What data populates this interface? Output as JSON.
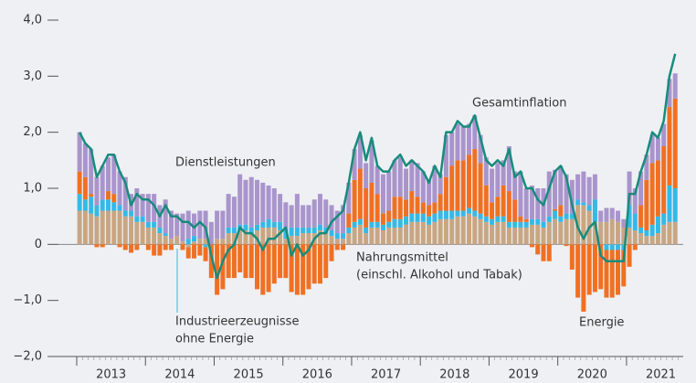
{
  "chart_data": {
    "type": "bar",
    "stacked": true,
    "categories": [
      null,
      null,
      null,
      null,
      null,
      null,
      null,
      null,
      null,
      null,
      null,
      null,
      null,
      null,
      null,
      null,
      null,
      null,
      null,
      null,
      null,
      null,
      null,
      null,
      null,
      null,
      null,
      null,
      null,
      null,
      null,
      null,
      null,
      null,
      null,
      null,
      null,
      null,
      null,
      null,
      null,
      null,
      null,
      null,
      null,
      null,
      null,
      null,
      null,
      null,
      null,
      null,
      null,
      null,
      null,
      null,
      null,
      null,
      null,
      null,
      null,
      null,
      null,
      null,
      null,
      null,
      null,
      null,
      null,
      null,
      null,
      null,
      null,
      null,
      null,
      null,
      null,
      null,
      null,
      null,
      null,
      null,
      null,
      null,
      null,
      null,
      null,
      null,
      null,
      null,
      null,
      null,
      null,
      null,
      null,
      null,
      null,
      null,
      null,
      null,
      null,
      null,
      null,
      null,
      null
    ],
    "year_labels": [
      "2013",
      "2014",
      "2015",
      "2016",
      "2017",
      "2018",
      "2019",
      "2020",
      "2021"
    ],
    "ylim": [
      -2,
      4
    ],
    "yticks": [
      {
        "value": 4,
        "label": "4,0"
      },
      {
        "value": 3,
        "label": "3,0"
      },
      {
        "value": 2,
        "label": "2,0"
      },
      {
        "value": 1,
        "label": "1,0"
      },
      0,
      {
        "value": -1,
        "label": "−1,0"
      },
      {
        "value": -2,
        "label": "−2,0"
      }
    ],
    "series": [
      {
        "name": [
          "Nahrungsmittel",
          "(einschl. Alkohol und Tabak)"
        ],
        "type": "bar",
        "color": "#c8a683",
        "values": [
          0.6,
          0.6,
          0.55,
          0.5,
          0.6,
          0.6,
          0.6,
          0.6,
          0.5,
          0.5,
          0.4,
          0.4,
          0.3,
          0.3,
          0.2,
          0.15,
          0.1,
          0.15,
          0.05,
          -0.05,
          0.05,
          0.1,
          0.1,
          0.0,
          0.1,
          0.1,
          0.2,
          0.2,
          0.25,
          0.25,
          0.2,
          0.25,
          0.3,
          0.3,
          0.3,
          0.25,
          0.1,
          0.15,
          0.15,
          0.2,
          0.2,
          0.2,
          0.25,
          0.2,
          0.15,
          0.1,
          0.1,
          0.2,
          0.3,
          0.35,
          0.2,
          0.3,
          0.3,
          0.25,
          0.3,
          0.3,
          0.3,
          0.35,
          0.4,
          0.4,
          0.4,
          0.35,
          0.4,
          0.45,
          0.45,
          0.45,
          0.5,
          0.5,
          0.55,
          0.5,
          0.45,
          0.4,
          0.35,
          0.4,
          0.4,
          0.3,
          0.3,
          0.3,
          0.3,
          0.35,
          0.35,
          0.3,
          0.4,
          0.45,
          0.4,
          0.45,
          0.45,
          0.7,
          0.7,
          0.6,
          0.4,
          0.4,
          0.4,
          0.45,
          0.4,
          0.3,
          0.3,
          0.25,
          0.2,
          0.15,
          0.15,
          0.2,
          0.35,
          0.4,
          0.4
        ]
      },
      {
        "name": [
          "Industrieerzeugnisse",
          "ohne Energie"
        ],
        "type": "bar",
        "color": "#35b9e6",
        "values": [
          0.3,
          0.2,
          0.3,
          0.2,
          0.2,
          0.2,
          0.15,
          0.1,
          0.1,
          0.1,
          0.1,
          0.1,
          0.1,
          0.1,
          0.1,
          0.05,
          0.0,
          0.0,
          0.0,
          0.1,
          0.1,
          0.0,
          -0.05,
          0.0,
          0.0,
          0.0,
          0.1,
          0.1,
          0.1,
          0.1,
          0.1,
          0.1,
          0.1,
          0.15,
          0.1,
          0.15,
          0.15,
          0.15,
          0.15,
          0.1,
          0.1,
          0.1,
          0.1,
          0.1,
          0.1,
          0.1,
          0.1,
          0.1,
          0.1,
          0.1,
          0.1,
          0.1,
          0.1,
          0.1,
          0.1,
          0.15,
          0.15,
          0.15,
          0.15,
          0.15,
          0.15,
          0.15,
          0.15,
          0.15,
          0.15,
          0.15,
          0.1,
          0.1,
          0.1,
          0.1,
          0.1,
          0.1,
          0.1,
          0.1,
          0.1,
          0.1,
          0.1,
          0.1,
          0.1,
          0.1,
          0.1,
          0.1,
          0.1,
          0.15,
          0.1,
          0.1,
          0.1,
          0.1,
          0.05,
          0.1,
          0.4,
          0.0,
          -0.1,
          -0.1,
          -0.1,
          -0.1,
          0.4,
          0.3,
          0.1,
          0.1,
          0.2,
          0.3,
          0.2,
          0.65,
          0.6
        ]
      },
      {
        "name": "Energie",
        "type": "bar",
        "color": "#f07023",
        "values": [
          0.4,
          0.4,
          0.05,
          -0.05,
          -0.05,
          0.15,
          0.15,
          -0.05,
          -0.1,
          -0.15,
          -0.1,
          0.0,
          -0.1,
          -0.2,
          -0.2,
          -0.1,
          -0.1,
          0.0,
          -0.1,
          -0.2,
          -0.25,
          -0.2,
          -0.25,
          -0.6,
          -0.9,
          -0.8,
          -0.6,
          -0.6,
          -0.5,
          -0.6,
          -0.6,
          -0.8,
          -0.9,
          -0.85,
          -0.7,
          -0.6,
          -0.6,
          -0.85,
          -0.9,
          -0.9,
          -0.8,
          -0.7,
          -0.7,
          -0.6,
          -0.3,
          -0.1,
          -0.1,
          0.25,
          0.75,
          0.9,
          0.7,
          0.7,
          0.5,
          0.2,
          0.2,
          0.4,
          0.4,
          0.3,
          0.4,
          0.3,
          0.2,
          0.2,
          0.2,
          0.3,
          0.6,
          0.8,
          0.9,
          0.9,
          0.95,
          1.1,
          0.9,
          0.55,
          0.3,
          0.35,
          0.55,
          0.55,
          0.4,
          0.1,
          0.05,
          -0.05,
          -0.18,
          -0.3,
          -0.3,
          0.03,
          0.2,
          -0.03,
          -0.45,
          -0.95,
          -1.2,
          -0.9,
          -0.85,
          -0.8,
          -0.85,
          -0.85,
          -0.8,
          -0.65,
          -0.4,
          -0.1,
          0.4,
          0.9,
          1.1,
          1.0,
          1.2,
          1.4,
          1.6
        ]
      },
      {
        "name": "Dienstleistungen",
        "type": "bar",
        "color": "#a994cc",
        "values": [
          0.7,
          0.6,
          0.8,
          0.5,
          0.6,
          0.6,
          0.7,
          0.6,
          0.6,
          0.3,
          0.5,
          0.4,
          0.5,
          0.5,
          0.4,
          0.6,
          0.5,
          0.4,
          0.5,
          0.5,
          0.4,
          0.5,
          0.5,
          0.4,
          0.5,
          0.5,
          0.6,
          0.55,
          0.9,
          0.8,
          0.9,
          0.8,
          0.7,
          0.6,
          0.6,
          0.5,
          0.5,
          0.4,
          0.6,
          0.4,
          0.4,
          0.5,
          0.55,
          0.5,
          0.45,
          0.4,
          0.5,
          0.55,
          0.55,
          0.6,
          0.45,
          0.75,
          0.5,
          0.7,
          0.7,
          0.65,
          0.7,
          0.55,
          0.55,
          0.6,
          0.55,
          0.45,
          0.65,
          0.35,
          0.75,
          0.6,
          0.65,
          0.6,
          0.55,
          0.6,
          0.5,
          0.5,
          0.6,
          0.6,
          0.45,
          0.8,
          0.5,
          0.8,
          0.55,
          0.6,
          0.55,
          0.6,
          0.8,
          0.7,
          0.7,
          0.7,
          0.6,
          0.45,
          0.55,
          0.5,
          0.45,
          0.2,
          0.25,
          0.2,
          0.2,
          0.15,
          0.6,
          0.45,
          0.6,
          0.45,
          0.5,
          0.4,
          0.4,
          0.5,
          0.45
        ]
      },
      {
        "name": "Gesamtinflation",
        "type": "line",
        "color": "#178c7c",
        "values": [
          2.0,
          1.8,
          1.7,
          1.2,
          1.4,
          1.6,
          1.6,
          1.3,
          1.1,
          0.7,
          0.9,
          0.8,
          0.8,
          0.7,
          0.5,
          0.7,
          0.5,
          0.5,
          0.4,
          0.4,
          0.3,
          0.4,
          0.3,
          -0.2,
          -0.6,
          -0.3,
          -0.1,
          0.0,
          0.3,
          0.2,
          0.2,
          0.1,
          -0.1,
          0.1,
          0.1,
          0.2,
          0.3,
          -0.2,
          0.0,
          -0.2,
          -0.1,
          0.1,
          0.2,
          0.2,
          0.4,
          0.5,
          0.6,
          1.1,
          1.7,
          2.0,
          1.5,
          1.9,
          1.4,
          1.3,
          1.3,
          1.5,
          1.6,
          1.4,
          1.5,
          1.4,
          1.3,
          1.1,
          1.4,
          1.2,
          2.0,
          2.0,
          2.2,
          2.1,
          2.1,
          2.3,
          1.9,
          1.5,
          1.4,
          1.5,
          1.4,
          1.7,
          1.2,
          1.3,
          1.0,
          1.0,
          0.8,
          0.7,
          1.0,
          1.3,
          1.4,
          1.2,
          0.7,
          0.3,
          0.1,
          0.3,
          0.4,
          -0.2,
          -0.3,
          -0.3,
          -0.3,
          -0.3,
          0.9,
          0.9,
          1.3,
          1.6,
          2.0,
          1.9,
          2.2,
          3.0,
          3.4
        ]
      }
    ]
  }
}
